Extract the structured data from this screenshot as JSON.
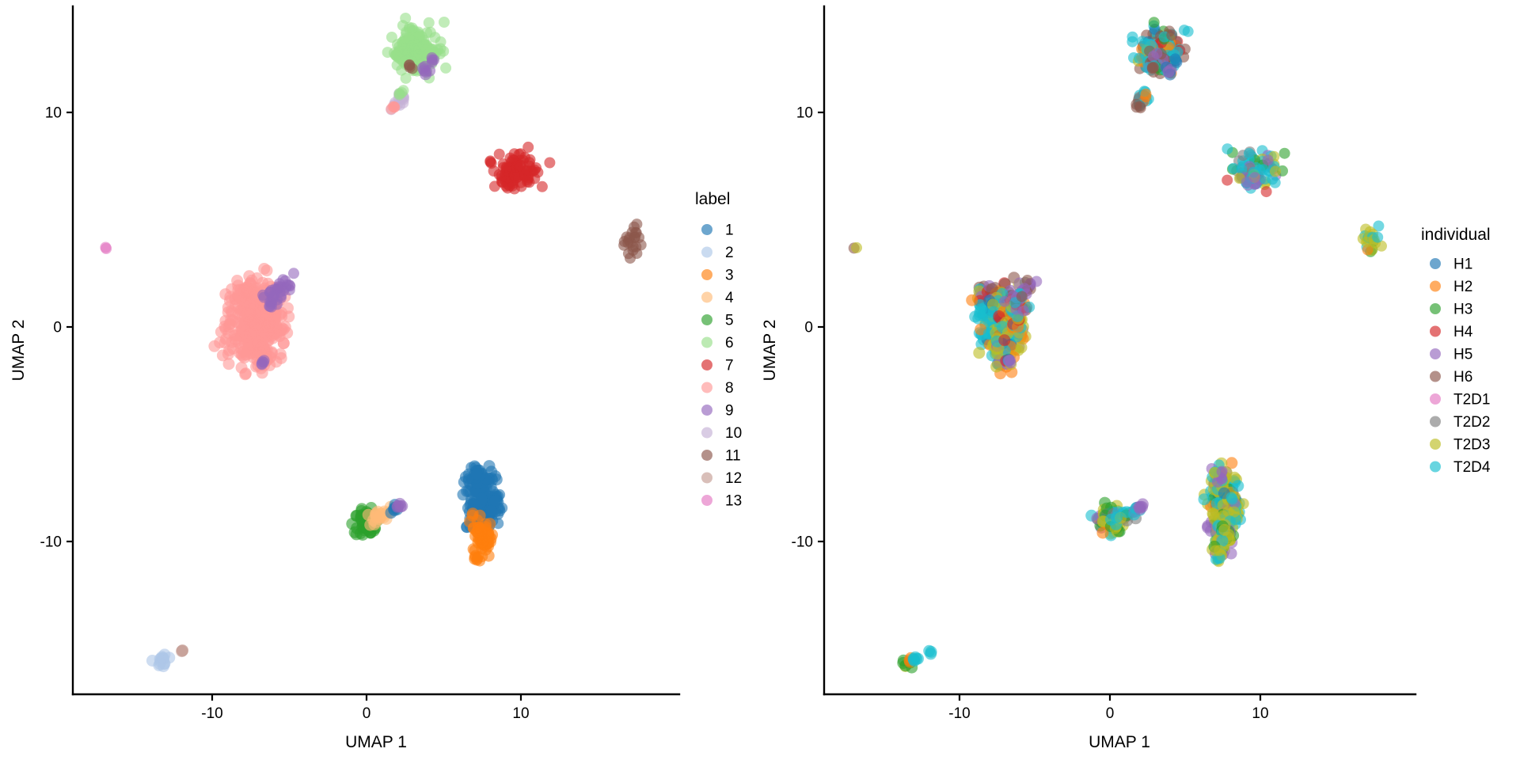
{
  "figure": {
    "background": "#ffffff",
    "text_color": "#000000"
  },
  "chart_data": [
    {
      "type": "scatter",
      "title": "",
      "xlabel": "UMAP 1",
      "ylabel": "UMAP 2",
      "xlim": [
        -19.0,
        20.3
      ],
      "ylim": [
        -17.1,
        14.9
      ],
      "x_ticks": [
        -10,
        0,
        10
      ],
      "y_ticks": [
        10,
        0,
        -10
      ],
      "grid": false,
      "legend_position": "right",
      "legend_title": "label",
      "point_alpha": 0.6,
      "legend": [
        {
          "key": "1",
          "color": "#1f77b4"
        },
        {
          "key": "2",
          "color": "#aec7e8"
        },
        {
          "key": "3",
          "color": "#ff7f0e"
        },
        {
          "key": "4",
          "color": "#ffbb78"
        },
        {
          "key": "5",
          "color": "#2ca02c"
        },
        {
          "key": "6",
          "color": "#98df8a"
        },
        {
          "key": "7",
          "color": "#d62728"
        },
        {
          "key": "8",
          "color": "#ff9896"
        },
        {
          "key": "9",
          "color": "#9467bd"
        },
        {
          "key": "10",
          "color": "#c5b0d5"
        },
        {
          "key": "11",
          "color": "#8c564b"
        },
        {
          "key": "12",
          "color": "#c49c94"
        },
        {
          "key": "13",
          "color": "#e377c2"
        }
      ],
      "blobs": [
        [
          3.3,
          13.0,
          0.75,
          0.5,
          110,
          7,
          0,
          {
            "6": 1
          }
        ],
        [
          2.45,
          12.8,
          0.3,
          0.3,
          25,
          7,
          0,
          {
            "6": 1
          }
        ],
        [
          3.2,
          12.25,
          0.45,
          0.25,
          25,
          7,
          0,
          {
            "6": 1
          }
        ],
        [
          2.9,
          12.1,
          0.1,
          0.08,
          4,
          7,
          0,
          {
            "11": 1
          }
        ],
        [
          3.85,
          11.95,
          0.12,
          0.1,
          6,
          7.5,
          0,
          {
            "9": 1
          }
        ],
        [
          4.3,
          12.4,
          0.1,
          0.08,
          4,
          7,
          0,
          {
            "9": 1
          }
        ],
        [
          2.05,
          10.55,
          0.3,
          0.13,
          14,
          7,
          38,
          {
            "10": 1
          }
        ],
        [
          2.3,
          10.85,
          0.1,
          0.08,
          4,
          7,
          0,
          {
            "6": 1
          }
        ],
        [
          1.8,
          10.25,
          0.1,
          0.08,
          4,
          7,
          0,
          {
            "8": 1
          }
        ],
        [
          9.9,
          7.35,
          0.75,
          0.4,
          70,
          7,
          0,
          {
            "7": 1
          }
        ],
        [
          8.85,
          7.0,
          0.3,
          0.22,
          14,
          7,
          0,
          {
            "7": 1
          }
        ],
        [
          9.5,
          6.85,
          0.35,
          0.2,
          12,
          7,
          0,
          {
            "7": 1
          }
        ],
        [
          17.3,
          4.05,
          0.3,
          0.35,
          22,
          7,
          0,
          {
            "11": 1
          }
        ],
        [
          -16.9,
          3.7,
          0.05,
          0.05,
          2,
          7,
          0,
          {
            "13": 1
          }
        ],
        [
          -7.3,
          0.3,
          0.9,
          1.1,
          260,
          7.5,
          0,
          {
            "8": 1
          }
        ],
        [
          -7.7,
          1.55,
          0.45,
          0.28,
          35,
          7.5,
          0,
          {
            "8": 1
          }
        ],
        [
          -6.9,
          -1.4,
          0.3,
          0.3,
          25,
          7.5,
          0,
          {
            "8": 1
          }
        ],
        [
          -6.2,
          0.1,
          0.25,
          0.5,
          30,
          7.5,
          0,
          {
            "8": 1
          }
        ],
        [
          -5.45,
          1.8,
          0.35,
          0.18,
          18,
          7,
          25,
          {
            "9": 1
          }
        ],
        [
          -6.1,
          1.3,
          0.35,
          0.25,
          16,
          7,
          0,
          {
            "9": 1
          }
        ],
        [
          -6.7,
          -1.6,
          0.1,
          0.08,
          5,
          7,
          0,
          {
            "9": 1
          }
        ],
        [
          -0.1,
          -9.0,
          0.4,
          0.35,
          55,
          7.5,
          0,
          {
            "5": 1
          }
        ],
        [
          0.3,
          -9.45,
          0.2,
          0.15,
          10,
          7,
          0,
          {
            "5": 1
          }
        ],
        [
          1.0,
          -8.8,
          0.42,
          0.15,
          22,
          7.5,
          15,
          {
            "4": 1
          }
        ],
        [
          1.75,
          -8.5,
          0.13,
          0.11,
          6,
          7.5,
          0,
          {
            "1": 1
          }
        ],
        [
          2.2,
          -8.32,
          0.11,
          0.1,
          5,
          7.5,
          0,
          {
            "9": 1
          }
        ],
        [
          7.5,
          -7.9,
          0.5,
          0.65,
          120,
          7.5,
          0,
          {
            "1": 1
          }
        ],
        [
          7.15,
          -6.9,
          0.3,
          0.22,
          16,
          7,
          0,
          {
            "1": 1
          }
        ],
        [
          8.35,
          -8.5,
          0.22,
          0.35,
          18,
          7,
          0,
          {
            "1": 1
          }
        ],
        [
          7.6,
          -8.9,
          0.4,
          0.25,
          25,
          7,
          0,
          {
            "1": 1
          }
        ],
        [
          6.5,
          -9.35,
          0.04,
          0.04,
          2,
          7.5,
          0,
          {
            "1": 1
          }
        ],
        [
          7.45,
          -9.85,
          0.33,
          0.45,
          55,
          7.5,
          0,
          {
            "3": 1
          }
        ],
        [
          7.15,
          -10.7,
          0.15,
          0.15,
          8,
          7,
          0,
          {
            "3": 1
          }
        ],
        [
          6.85,
          -8.75,
          0.06,
          0.06,
          2,
          7.5,
          0,
          {
            "3": 1
          }
        ],
        [
          -13.2,
          -15.6,
          0.3,
          0.14,
          14,
          7.5,
          18,
          {
            "2": 1
          }
        ],
        [
          -11.9,
          -15.15,
          0.08,
          0.07,
          3,
          7.5,
          0,
          {
            "12": 1
          }
        ]
      ]
    },
    {
      "type": "scatter",
      "title": "",
      "xlabel": "UMAP 1",
      "ylabel": "UMAP 2",
      "xlim": [
        -19.0,
        20.3
      ],
      "ylim": [
        -17.1,
        14.9
      ],
      "x_ticks": [
        -10,
        0,
        10
      ],
      "y_ticks": [
        10,
        0,
        -10
      ],
      "grid": false,
      "legend_position": "right",
      "legend_title": "individual",
      "point_alpha": 0.6,
      "legend": [
        {
          "key": "H1",
          "color": "#1f77b4"
        },
        {
          "key": "H2",
          "color": "#ff7f0e"
        },
        {
          "key": "H3",
          "color": "#2ca02c"
        },
        {
          "key": "H4",
          "color": "#d62728"
        },
        {
          "key": "H5",
          "color": "#9467bd"
        },
        {
          "key": "H6",
          "color": "#8c564b"
        },
        {
          "key": "T2D1",
          "color": "#e377c2"
        },
        {
          "key": "T2D2",
          "color": "#7f7f7f"
        },
        {
          "key": "T2D3",
          "color": "#bcbd22"
        },
        {
          "key": "T2D4",
          "color": "#17becf"
        }
      ],
      "blobs": [
        [
          3.3,
          13.0,
          0.75,
          0.5,
          110,
          7,
          0,
          {
            "T2D4": 0.4,
            "H6": 0.2,
            "H4": 0.11,
            "H2": 0.08,
            "T2D3": 0.08,
            "H1": 0.06,
            "H3": 0.04,
            "H5": 0.03
          }
        ],
        [
          2.45,
          12.8,
          0.3,
          0.3,
          25,
          7,
          0,
          {
            "T2D4": 0.5,
            "T2D3": 0.2,
            "H2": 0.15,
            "H6": 0.15
          }
        ],
        [
          3.2,
          12.25,
          0.45,
          0.25,
          25,
          7,
          0,
          {
            "H6": 0.4,
            "T2D4": 0.25,
            "H5": 0.2,
            "H3": 0.15
          }
        ],
        [
          2.9,
          12.1,
          0.1,
          0.08,
          4,
          7,
          0,
          {
            "H6": 0.6,
            "T2D4": 0.4
          }
        ],
        [
          3.85,
          11.95,
          0.12,
          0.1,
          6,
          7.5,
          0,
          {
            "H1": 0.5,
            "H5": 0.5
          }
        ],
        [
          4.3,
          12.4,
          0.1,
          0.08,
          4,
          7,
          0,
          {
            "H1": 0.6,
            "T2D4": 0.4
          }
        ],
        [
          2.05,
          10.55,
          0.3,
          0.13,
          14,
          7,
          38,
          {
            "T2D4": 0.4,
            "H2": 0.25,
            "H6": 0.2,
            "T2D2": 0.15
          }
        ],
        [
          2.3,
          10.85,
          0.1,
          0.08,
          4,
          7,
          0,
          {
            "H2": 0.6,
            "T2D4": 0.4
          }
        ],
        [
          1.8,
          10.25,
          0.1,
          0.08,
          4,
          7,
          0,
          {
            "H6": 1
          }
        ],
        [
          9.9,
          7.35,
          0.75,
          0.4,
          70,
          7,
          0,
          {
            "T2D4": 0.45,
            "T2D2": 0.18,
            "H3": 0.12,
            "T2D3": 0.1,
            "H5": 0.08,
            "H4": 0.07
          }
        ],
        [
          8.85,
          7.0,
          0.3,
          0.22,
          14,
          7,
          0,
          {
            "T2D4": 0.5,
            "T2D2": 0.3,
            "H3": 0.2
          }
        ],
        [
          9.5,
          6.85,
          0.35,
          0.2,
          12,
          7,
          0,
          {
            "T2D4": 0.4,
            "T2D3": 0.3,
            "H5": 0.3
          }
        ],
        [
          17.3,
          4.05,
          0.3,
          0.35,
          22,
          7,
          0,
          {
            "T2D3": 0.5,
            "T2D4": 0.3,
            "H3": 0.1,
            "H2": 0.1
          }
        ],
        [
          -16.9,
          3.7,
          0.05,
          0.05,
          2,
          7,
          0,
          {
            "T2D3": 0.7,
            "H6": 0.3
          }
        ],
        [
          -7.4,
          1.35,
          0.8,
          0.4,
          70,
          7.5,
          0,
          {
            "H6": 0.42,
            "H4": 0.14,
            "H5": 0.12,
            "T2D4": 0.12,
            "H2": 0.1,
            "T2D3": 0.1
          }
        ],
        [
          -7.9,
          0.3,
          0.5,
          0.65,
          90,
          7.5,
          0,
          {
            "T2D4": 0.58,
            "T2D3": 0.15,
            "H2": 0.1,
            "H1": 0.09,
            "H4": 0.08
          }
        ],
        [
          -6.5,
          0.1,
          0.4,
          0.55,
          70,
          7.5,
          0,
          {
            "T2D3": 0.38,
            "H2": 0.16,
            "T2D4": 0.16,
            "H4": 0.1,
            "H5": 0.1,
            "H6": 0.1
          }
        ],
        [
          -7.0,
          -1.1,
          0.45,
          0.45,
          60,
          7.5,
          0,
          {
            "T2D3": 0.45,
            "T2D4": 0.2,
            "H2": 0.12,
            "H5": 0.12,
            "H4": 0.06,
            "H1": 0.05
          }
        ],
        [
          -6.2,
          0.6,
          0.25,
          0.4,
          25,
          7.5,
          0,
          {
            "H4": 0.3,
            "T2D3": 0.3,
            "H2": 0.2,
            "T2D4": 0.2
          }
        ],
        [
          -5.45,
          1.8,
          0.35,
          0.18,
          18,
          7,
          25,
          {
            "H5": 0.5,
            "H6": 0.3,
            "T2D2": 0.1,
            "T2D4": 0.1
          }
        ],
        [
          -6.1,
          1.3,
          0.35,
          0.25,
          16,
          7,
          0,
          {
            "H5": 0.4,
            "H6": 0.4,
            "T2D4": 0.2
          }
        ],
        [
          -6.7,
          -1.6,
          0.1,
          0.08,
          5,
          7,
          0,
          {
            "H5": 0.7,
            "T2D4": 0.3
          }
        ],
        [
          -0.1,
          -9.0,
          0.4,
          0.35,
          55,
          7.5,
          0,
          {
            "T2D3": 0.3,
            "T2D4": 0.25,
            "H3": 0.2,
            "H2": 0.15,
            "H5": 0.1
          }
        ],
        [
          0.3,
          -9.45,
          0.2,
          0.15,
          10,
          7,
          0,
          {
            "H3": 0.5,
            "T2D3": 0.5
          }
        ],
        [
          1.0,
          -8.8,
          0.42,
          0.15,
          22,
          7.5,
          15,
          {
            "T2D3": 0.4,
            "T2D4": 0.3,
            "T2D2": 0.15,
            "H3": 0.15
          }
        ],
        [
          1.75,
          -8.5,
          0.13,
          0.11,
          6,
          7.5,
          0,
          {
            "T2D4": 0.6,
            "H5": 0.4
          }
        ],
        [
          2.2,
          -8.32,
          0.11,
          0.1,
          5,
          7.5,
          0,
          {
            "H5": 1
          }
        ],
        [
          7.5,
          -7.9,
          0.5,
          0.65,
          120,
          7.5,
          0,
          {
            "T2D3": 0.4,
            "T2D4": 0.22,
            "H5": 0.12,
            "H1": 0.08,
            "H3": 0.08,
            "H6": 0.05,
            "H2": 0.05
          }
        ],
        [
          7.15,
          -6.9,
          0.3,
          0.22,
          16,
          7,
          0,
          {
            "T2D4": 0.5,
            "H5": 0.3,
            "T2D3": 0.2
          }
        ],
        [
          8.35,
          -8.5,
          0.22,
          0.35,
          18,
          7,
          0,
          {
            "T2D3": 0.5,
            "T2D4": 0.3,
            "H5": 0.2
          }
        ],
        [
          7.6,
          -8.9,
          0.4,
          0.25,
          25,
          7,
          0,
          {
            "T2D3": 0.55,
            "T2D4": 0.25,
            "H3": 0.2
          }
        ],
        [
          6.5,
          -9.35,
          0.04,
          0.04,
          2,
          7.5,
          0,
          {
            "H5": 1
          }
        ],
        [
          7.45,
          -9.85,
          0.33,
          0.45,
          55,
          7.5,
          0,
          {
            "T2D3": 0.5,
            "T2D4": 0.2,
            "H3": 0.15,
            "H5": 0.15
          }
        ],
        [
          7.15,
          -10.7,
          0.15,
          0.15,
          8,
          7,
          0,
          {
            "T2D3": 0.7,
            "T2D4": 0.3
          }
        ],
        [
          6.85,
          -8.75,
          0.06,
          0.06,
          2,
          7.5,
          0,
          {
            "T2D3": 1
          }
        ],
        [
          -13.5,
          -15.7,
          0.14,
          0.11,
          6,
          7.5,
          0,
          {
            "H3": 0.7,
            "T2D3": 0.3
          }
        ],
        [
          -13.2,
          -15.55,
          0.08,
          0.08,
          3,
          7.5,
          0,
          {
            "H2": 1
          }
        ],
        [
          -12.95,
          -15.45,
          0.16,
          0.11,
          6,
          7.5,
          0,
          {
            "T2D4": 1
          }
        ],
        [
          -11.9,
          -15.15,
          0.08,
          0.07,
          3,
          7.5,
          0,
          {
            "T2D4": 1
          }
        ]
      ]
    }
  ]
}
